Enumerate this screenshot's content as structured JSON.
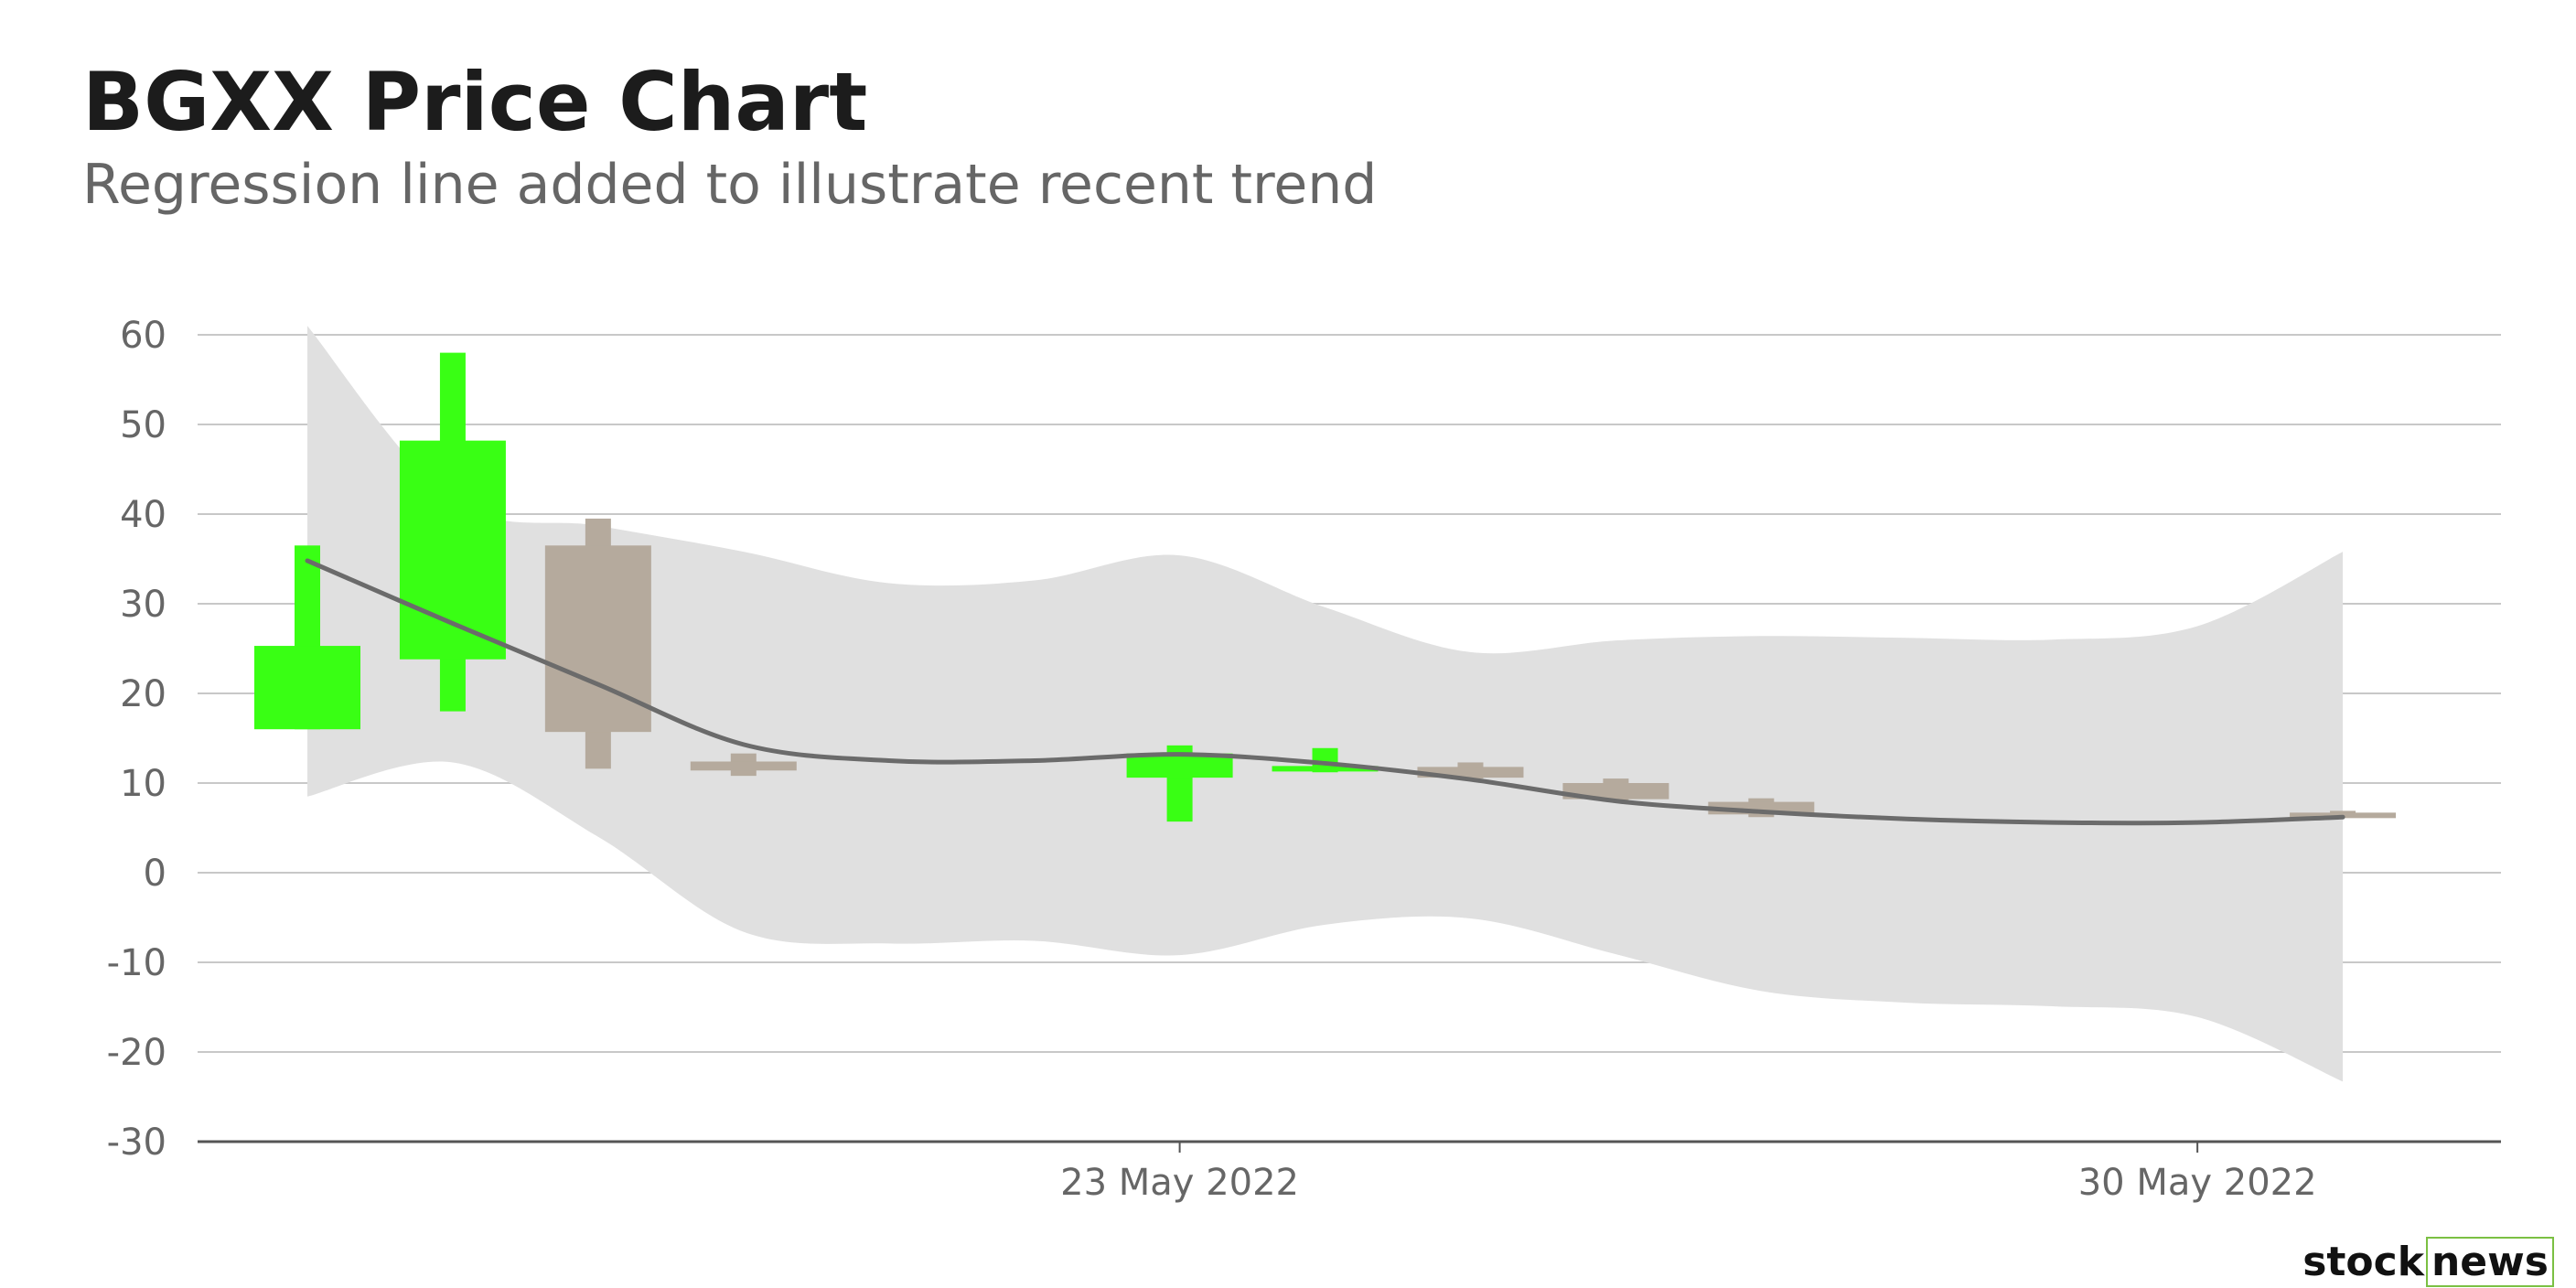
{
  "title": "BGXX Price Chart",
  "subtitle": "Regression line added to illustrate recent trend",
  "brand": {
    "part1": "stock",
    "part2": "news"
  },
  "colors": {
    "up": "#39ff14",
    "down": "#b5aa9d",
    "band": "#e0e0e0",
    "trend": "#6b6b6b",
    "grid": "#c8c8c8",
    "axis": "#555555",
    "brand_accent": "#7bc043"
  },
  "chart_data": {
    "type": "candlestick",
    "ylim": [
      -30,
      60
    ],
    "y_ticks": [
      60,
      50,
      40,
      30,
      20,
      10,
      0,
      -10,
      -20,
      -30
    ],
    "x_range": [
      "2022-05-17",
      "2022-06-01"
    ],
    "x_ticks": [
      {
        "date": "2022-05-23",
        "label": "23 May 2022"
      },
      {
        "date": "2022-05-30",
        "label": "30 May 2022"
      }
    ],
    "grid": true,
    "candles": [
      {
        "date": "2022-05-17",
        "open": 16.0,
        "high": 36.5,
        "low": 16.0,
        "close": 25.3,
        "direction": "up"
      },
      {
        "date": "2022-05-18",
        "open": 23.8,
        "high": 58.0,
        "low": 18.0,
        "close": 48.2,
        "direction": "up"
      },
      {
        "date": "2022-05-19",
        "open": 36.5,
        "high": 39.5,
        "low": 11.6,
        "close": 15.7,
        "direction": "down"
      },
      {
        "date": "2022-05-20",
        "open": 12.4,
        "high": 13.3,
        "low": 10.8,
        "close": 11.4,
        "direction": "down"
      },
      {
        "date": "2022-05-23",
        "open": 10.6,
        "high": 14.2,
        "low": 5.7,
        "close": 13.3,
        "direction": "up"
      },
      {
        "date": "2022-05-24",
        "open": 11.5,
        "high": 13.9,
        "low": 11.2,
        "close": 11.9,
        "direction": "up"
      },
      {
        "date": "2022-05-25",
        "open": 11.8,
        "high": 12.3,
        "low": 10.5,
        "close": 10.6,
        "direction": "down"
      },
      {
        "date": "2022-05-26",
        "open": 10.0,
        "high": 10.5,
        "low": 8.0,
        "close": 8.2,
        "direction": "down"
      },
      {
        "date": "2022-05-27",
        "open": 7.9,
        "high": 8.3,
        "low": 6.2,
        "close": 6.5,
        "direction": "down"
      },
      {
        "date": "2022-05-31",
        "open": 6.7,
        "high": 6.9,
        "low": 6.3,
        "close": 6.5,
        "direction": "down"
      }
    ],
    "regression": {
      "dates": [
        "2022-05-17",
        "2022-05-18",
        "2022-05-19",
        "2022-05-20",
        "2022-05-21",
        "2022-05-22",
        "2022-05-23",
        "2022-05-24",
        "2022-05-25",
        "2022-05-26",
        "2022-05-27",
        "2022-05-28",
        "2022-05-29",
        "2022-05-30",
        "2022-05-31"
      ],
      "fit": [
        34.8,
        27.8,
        21.0,
        14.3,
        12.5,
        12.5,
        13.2,
        12.2,
        10.4,
        8.0,
        6.8,
        6.0,
        5.6,
        5.6,
        6.2
      ],
      "upper": [
        61.0,
        41.5,
        38.7,
        35.8,
        32.3,
        32.6,
        35.4,
        29.6,
        24.6,
        25.9,
        26.4,
        26.2,
        26.0,
        27.5,
        35.8
      ],
      "lower": [
        8.5,
        12.3,
        4.0,
        -6.6,
        -7.9,
        -7.6,
        -9.2,
        -5.8,
        -5.1,
        -9.1,
        -13.2,
        -14.5,
        -14.9,
        -16.1,
        -23.3
      ]
    }
  }
}
